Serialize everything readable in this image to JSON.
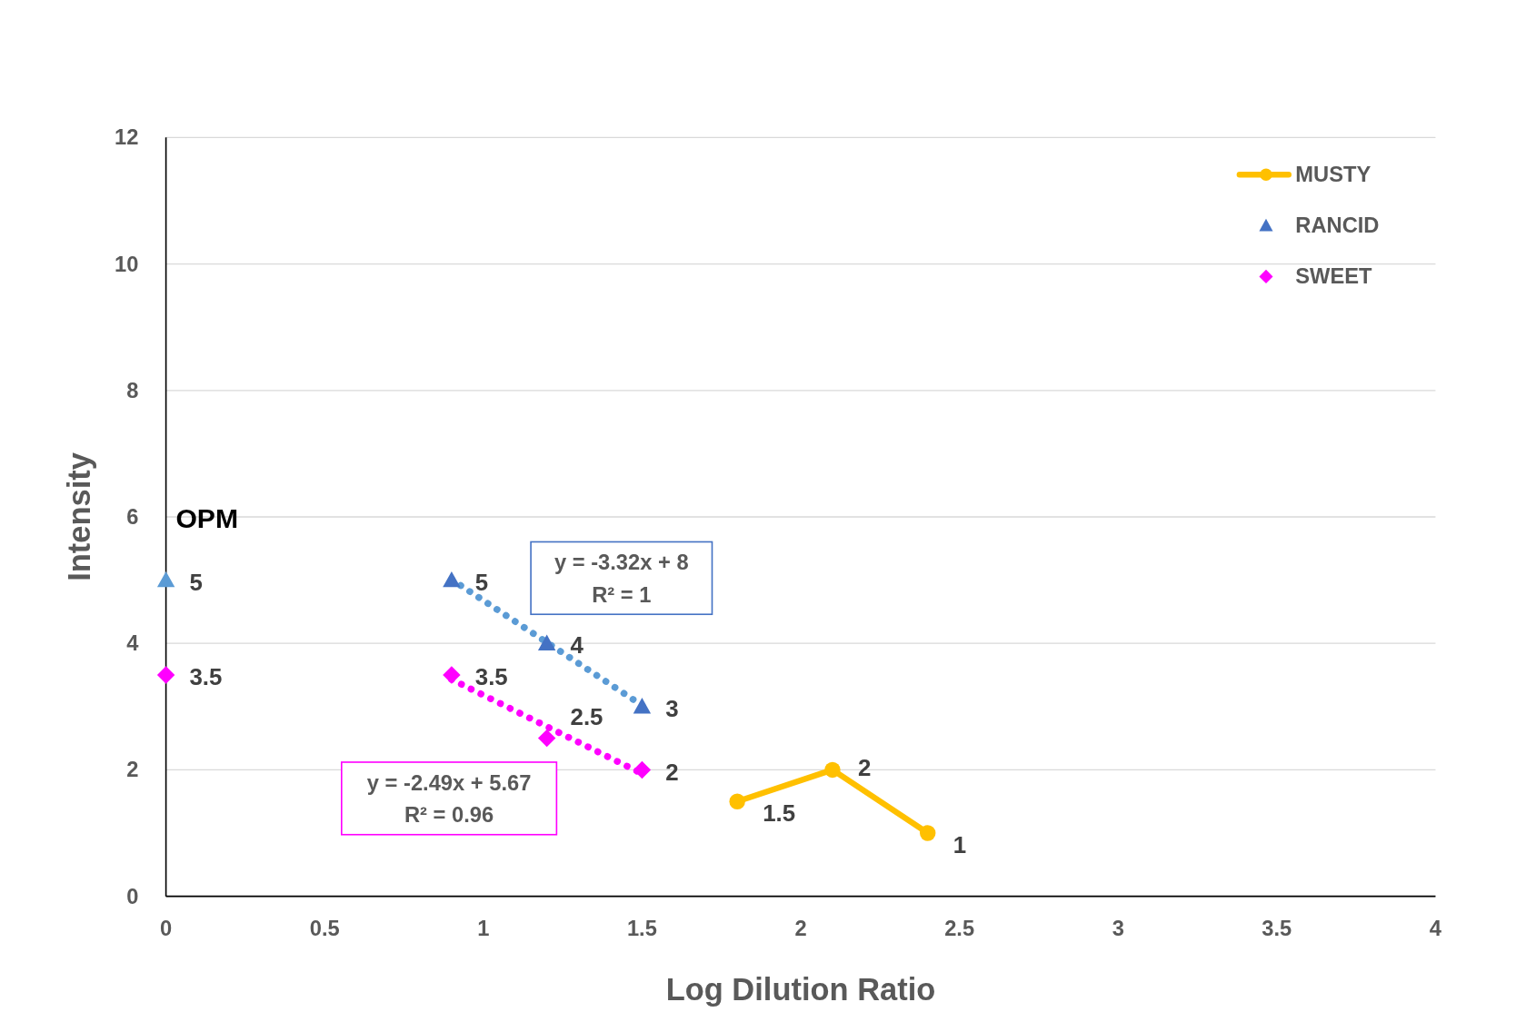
{
  "chart_data": {
    "type": "scatter",
    "xlabel": "Log Dilution Ratio",
    "ylabel": "Intensity",
    "xlim": [
      0,
      4
    ],
    "xticks": [
      0,
      0.5,
      1,
      1.5,
      2,
      2.5,
      3,
      3.5,
      4
    ],
    "ylim": [
      0,
      12
    ],
    "yticks": [
      0,
      2,
      4,
      6,
      8,
      10,
      12
    ],
    "grid": "y",
    "legend": "top right",
    "series": [
      {
        "name": "MUSTY",
        "type": "line",
        "color": "#ffc000",
        "marker": "circle",
        "x": [
          1.8,
          2.1,
          2.4
        ],
        "values": [
          1.5,
          2,
          1
        ],
        "value_labels": [
          "1.5",
          "2",
          "1"
        ]
      },
      {
        "name": "RANCID",
        "color": "#4472c4",
        "colors": [
          "#5b9bd5",
          "#4472c4",
          "#4472c4",
          "#4472c4"
        ],
        "marker": "triangle",
        "x": [
          0,
          0.9,
          1.2,
          1.5
        ],
        "values": [
          5,
          5,
          4,
          3
        ],
        "value_labels": [
          "5",
          "5",
          "4",
          "3"
        ]
      },
      {
        "name": "SWEET",
        "color": "#ff00ff",
        "marker": "diamond",
        "x": [
          0,
          0.9,
          1.2,
          1.5
        ],
        "values": [
          3.5,
          3.5,
          2.5,
          2
        ],
        "value_labels": [
          "3.5",
          "3.5",
          "2.5",
          "2"
        ]
      },
      {
        "type": "line",
        "color": "#5b9bd5",
        "line_style": "dotted",
        "x": [
          0.9,
          1.5
        ],
        "values": [
          5.01,
          3.02
        ]
      },
      {
        "type": "line",
        "color": "#ff00ff",
        "line_style": "dotted",
        "x": [
          0.9,
          1.5
        ],
        "values": [
          3.43,
          1.94
        ]
      }
    ],
    "annotations": [
      "OPM",
      "y = -3.32x + 8\nR² = 1",
      "y = -2.49x + 5.67\nR² = 0.96"
    ]
  }
}
